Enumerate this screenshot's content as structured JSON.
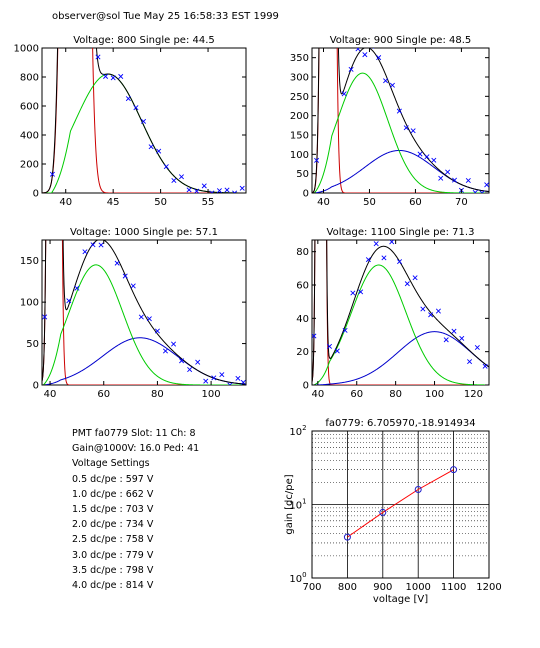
{
  "header": "observer@sol  Tue May 25 16:58:33 EST 1999",
  "info": {
    "pmt_line": "PMT fa0779 Slot: 11 Ch: 8",
    "gain_line": "Gain@1000V: 16.0 Ped: 41",
    "settings_title": "Voltage Settings",
    "settings": [
      "0.5 dc/pe : 597 V",
      "1.0 dc/pe : 662 V",
      "1.5 dc/pe : 703 V",
      "2.0 dc/pe : 734 V",
      "2.5 dc/pe : 758 V",
      "3.0 dc/pe : 779 V",
      "3.5 dc/pe : 798 V",
      "4.0 dc/pe : 814 V"
    ]
  },
  "colors": {
    "data": "#0000ff",
    "total_fit": "#000000",
    "pe_fit": "#00cc00",
    "two_pe_fit": "#0000cc",
    "pedestal": "#cc0000",
    "gain_line": "#ff0000"
  },
  "chart_data": [
    {
      "type": "line",
      "title": "Voltage: 800 Single pe: 44.5",
      "xlim": [
        37.5,
        59
      ],
      "ylim": [
        0,
        1000
      ],
      "xticks": [
        40,
        45,
        50,
        55
      ],
      "yticks": [
        0,
        200,
        400,
        600,
        800,
        1000
      ],
      "pedestal": {
        "center": 41.0,
        "sigma": 0.75,
        "peak": 20000
      },
      "pe": {
        "center": 44.5,
        "sigma": 3.5,
        "peak": 820,
        "ramp": [
          38.5,
          40.5
        ]
      },
      "two_pe": {
        "center": 49.0,
        "sigma": 5.0,
        "peak": 0
      },
      "noise_amp": 40,
      "scatter_x": [
        38.6,
        39.4,
        40.2,
        41.0,
        41.8,
        42.6,
        43.4,
        44.2,
        45.0,
        45.8,
        46.6,
        47.4,
        48.2,
        49.0,
        49.8,
        50.6,
        51.4,
        52.2,
        53.0,
        53.8,
        54.6,
        55.4,
        56.2,
        57.0,
        57.8,
        58.6
      ]
    },
    {
      "type": "line",
      "title": "Voltage: 900 Single pe: 48.5",
      "xlim": [
        37.5,
        76
      ],
      "ylim": [
        0,
        375
      ],
      "xticks": [
        40,
        50,
        60,
        70
      ],
      "yticks": [
        0,
        50,
        100,
        150,
        200,
        250,
        300,
        350
      ],
      "pedestal": {
        "center": 41.0,
        "sigma": 0.8,
        "peak": 8000
      },
      "pe": {
        "center": 48.5,
        "sigma": 5.5,
        "peak": 310,
        "ramp": [
          38.0,
          41.8
        ]
      },
      "two_pe": {
        "center": 56.5,
        "sigma": 7.5,
        "peak": 110
      },
      "noise_amp": 18,
      "scatter_x": [
        38.5,
        40.0,
        41.5,
        43.0,
        44.5,
        46.0,
        47.5,
        49.0,
        50.5,
        52.0,
        53.5,
        55.0,
        56.5,
        58.0,
        59.5,
        61.0,
        62.5,
        64.0,
        65.5,
        67.0,
        68.5,
        70.0,
        71.5,
        73.0,
        74.5,
        75.5
      ]
    },
    {
      "type": "line",
      "title": "Voltage: 1000 Single pe: 57.1",
      "xlim": [
        37,
        113
      ],
      "ylim": [
        0,
        175
      ],
      "xticks": [
        40,
        60,
        80,
        100
      ],
      "yticks": [
        0,
        50,
        100,
        150
      ],
      "pedestal": {
        "center": 41.5,
        "sigma": 1.2,
        "peak": 5000
      },
      "pe": {
        "center": 57.1,
        "sigma": 10,
        "peak": 145,
        "ramp": [
          37.5,
          44.0
        ]
      },
      "two_pe": {
        "center": 73.5,
        "sigma": 14,
        "peak": 57
      },
      "noise_amp": 10,
      "scatter_x": [
        38,
        41,
        44,
        47,
        50,
        53,
        56,
        59,
        62,
        65,
        68,
        71,
        74,
        77,
        80,
        83,
        86,
        89,
        92,
        95,
        98,
        101,
        104,
        107,
        110,
        112
      ]
    },
    {
      "type": "line",
      "title": "Voltage: 1100 Single pe: 71.3",
      "xlim": [
        37,
        128
      ],
      "ylim": [
        0,
        87
      ],
      "xticks": [
        40,
        60,
        80,
        100,
        120
      ],
      "yticks": [
        0,
        20,
        40,
        60,
        80
      ],
      "pedestal": {
        "center": 41.5,
        "sigma": 1.2,
        "peak": 2000
      },
      "pe": {
        "center": 71.3,
        "sigma": 14,
        "peak": 72,
        "ramp": [
          38.0,
          46.0
        ]
      },
      "two_pe": {
        "center": 100,
        "sigma": 19,
        "peak": 32
      },
      "noise_amp": 7,
      "scatter_x": [
        38,
        42,
        46,
        50,
        54,
        58,
        62,
        66,
        70,
        74,
        78,
        82,
        86,
        90,
        94,
        98,
        102,
        106,
        110,
        114,
        118,
        122,
        126
      ]
    },
    {
      "type": "scatter",
      "title": "fa0779: 6.705970,-18.914934",
      "xlabel": "voltage [V]",
      "ylabel": "gain [dc/pe]",
      "xlim": [
        700,
        1200
      ],
      "ylim_log": [
        1,
        100
      ],
      "xticks": [
        700,
        800,
        900,
        1000,
        1100,
        1200
      ],
      "yticks": [
        {
          "value": 1,
          "base": "10",
          "exp": "0"
        },
        {
          "value": 10,
          "base": "10",
          "exp": "1"
        },
        {
          "value": 100,
          "base": "10",
          "exp": "2"
        }
      ],
      "x": [
        800,
        900,
        1000,
        1100
      ],
      "y": [
        3.6,
        7.8,
        16.0,
        29.8
      ]
    }
  ]
}
